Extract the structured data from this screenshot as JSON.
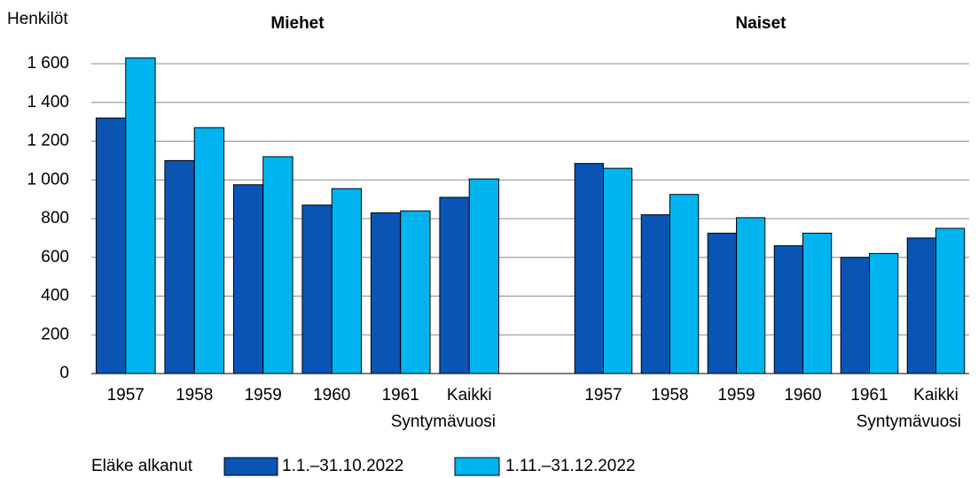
{
  "chart_data": {
    "type": "bar",
    "y_label": "Henkilöt",
    "ylim": [
      0,
      1600
    ],
    "yticks": [
      0,
      200,
      400,
      600,
      800,
      {
        "value": 1000,
        "label": "1 000"
      },
      {
        "value": 1200,
        "label": "1 200"
      },
      {
        "value": 1400,
        "label": "1 400"
      },
      {
        "value": 1600,
        "label": "1 600"
      }
    ],
    "grid": true,
    "legend_title": "Eläke alkanut",
    "legend_position": "bottom",
    "series": [
      {
        "name": "1.1.–31.10.2022",
        "color": "#0a55b4"
      },
      {
        "name": "1.11.–31.12.2022",
        "color": "#00b4f0"
      }
    ],
    "panels": [
      {
        "title": "Miehet",
        "x_label": "Syntymävuosi",
        "categories": [
          "1957",
          "1958",
          "1959",
          "1960",
          "1961",
          "Kaikki"
        ],
        "values": [
          [
            1320,
            1100,
            975,
            870,
            830,
            910
          ],
          [
            1630,
            1270,
            1120,
            955,
            840,
            1005
          ]
        ]
      },
      {
        "title": "Naiset",
        "x_label": "Syntymävuosi",
        "categories": [
          "1957",
          "1958",
          "1959",
          "1960",
          "1961",
          "Kaikki"
        ],
        "values": [
          [
            1085,
            820,
            725,
            660,
            600,
            700
          ],
          [
            1060,
            925,
            805,
            725,
            620,
            750
          ]
        ]
      }
    ]
  }
}
